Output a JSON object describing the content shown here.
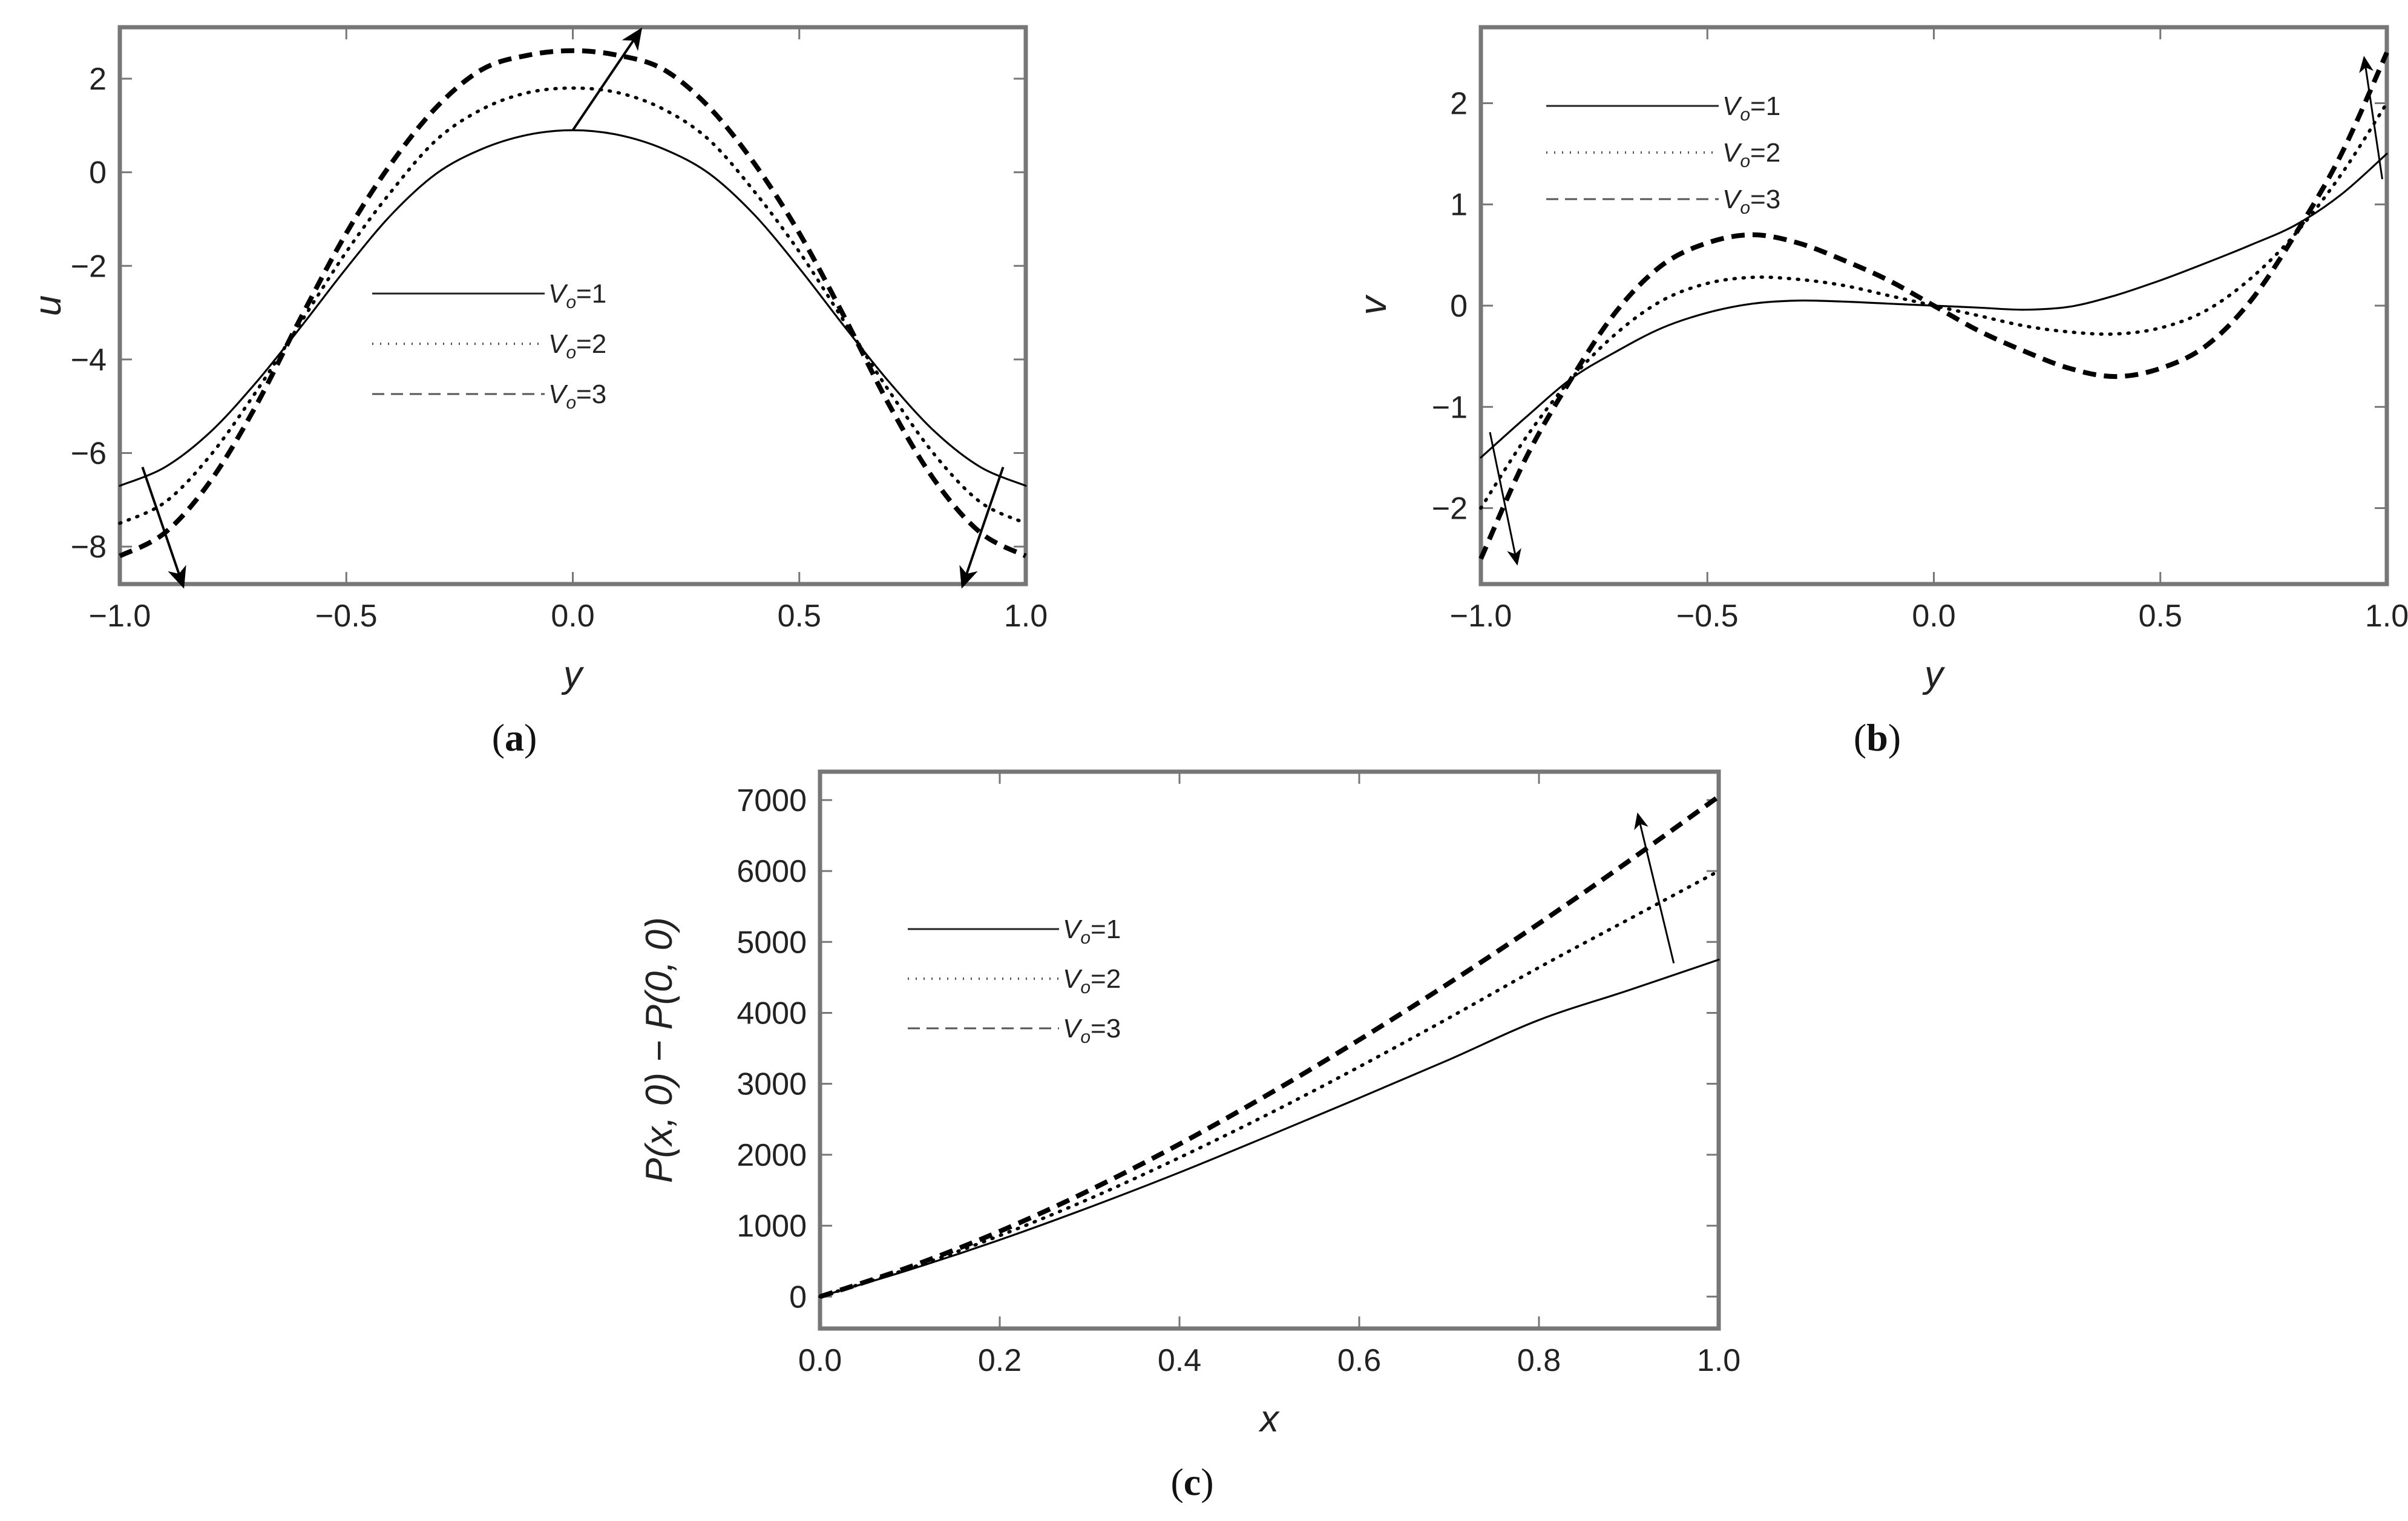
{
  "chart_data": [
    {
      "type": "line",
      "panel": "a",
      "caption_letter": "a",
      "xlabel": "y",
      "ylabel": "u",
      "xlim": [
        -1.0,
        1.0
      ],
      "ylim": [
        -8.8,
        3.1
      ],
      "xticks": [
        -1.0,
        -0.5,
        0.0,
        0.5,
        1.0
      ],
      "xtick_labels": [
        "−1.0",
        "−0.5",
        "0.0",
        "0.5",
        "1.0"
      ],
      "yticks": [
        -8,
        -6,
        -4,
        -2,
        0,
        2
      ],
      "ytick_labels": [
        "−8",
        "−6",
        "−4",
        "−2",
        "0",
        "2"
      ],
      "legend": {
        "placement": "center",
        "entries": [
          {
            "symbol": "V",
            "sub": "o",
            "value": "=1"
          },
          {
            "symbol": "V",
            "sub": "o",
            "value": "=2"
          },
          {
            "symbol": "V",
            "sub": "o",
            "value": "=3"
          }
        ]
      },
      "x": [
        -1.0,
        -0.9,
        -0.8,
        -0.7,
        -0.6,
        -0.5,
        -0.4,
        -0.3,
        -0.2,
        -0.1,
        0.0,
        0.1,
        0.2,
        0.3,
        0.4,
        0.5,
        0.6,
        0.7,
        0.8,
        0.9,
        1.0
      ],
      "series": [
        {
          "style": "solid",
          "values": [
            -6.7,
            -6.3,
            -5.55,
            -4.5,
            -3.3,
            -2.05,
            -0.9,
            -0.02,
            0.5,
            0.8,
            0.9,
            0.8,
            0.5,
            -0.02,
            -0.9,
            -2.05,
            -3.3,
            -4.5,
            -5.55,
            -6.3,
            -6.7
          ]
        },
        {
          "style": "dotted",
          "values": [
            -7.5,
            -7.05,
            -6.05,
            -4.7,
            -3.2,
            -1.7,
            -0.4,
            0.7,
            1.35,
            1.7,
            1.8,
            1.7,
            1.35,
            0.7,
            -0.4,
            -1.7,
            -3.2,
            -4.7,
            -6.05,
            -7.05,
            -7.5
          ]
        },
        {
          "style": "dashed",
          "values": [
            -8.2,
            -7.7,
            -6.6,
            -5.0,
            -3.1,
            -1.3,
            0.2,
            1.4,
            2.2,
            2.5,
            2.6,
            2.5,
            2.2,
            1.4,
            0.2,
            -1.3,
            -3.1,
            -5.0,
            -6.6,
            -7.7,
            -8.2
          ]
        }
      ]
    },
    {
      "type": "line",
      "panel": "b",
      "caption_letter": "b",
      "xlabel": "y",
      "ylabel": "v",
      "xlim": [
        -1.0,
        1.0
      ],
      "ylim": [
        -2.75,
        2.75
      ],
      "xticks": [
        -1.0,
        -0.5,
        0.0,
        0.5,
        1.0
      ],
      "xtick_labels": [
        "−1.0",
        "−0.5",
        "0.0",
        "0.5",
        "1.0"
      ],
      "yticks": [
        -2,
        -1,
        0,
        1,
        2
      ],
      "ytick_labels": [
        "−2",
        "−1",
        "0",
        "1",
        "2"
      ],
      "legend": {
        "placement": "top-left",
        "entries": [
          {
            "symbol": "V",
            "sub": "o",
            "value": "=1"
          },
          {
            "symbol": "V",
            "sub": "o",
            "value": "=2"
          },
          {
            "symbol": "V",
            "sub": "o",
            "value": "=3"
          }
        ]
      },
      "x": [
        -1.0,
        -0.9,
        -0.8,
        -0.7,
        -0.6,
        -0.5,
        -0.4,
        -0.3,
        -0.2,
        -0.1,
        0.0,
        0.1,
        0.2,
        0.3,
        0.4,
        0.5,
        0.6,
        0.7,
        0.8,
        0.9,
        1.0
      ],
      "series": [
        {
          "style": "solid",
          "values": [
            -1.5,
            -1.1,
            -0.72,
            -0.45,
            -0.22,
            -0.07,
            0.02,
            0.05,
            0.04,
            0.02,
            0.0,
            -0.02,
            -0.04,
            -0.01,
            0.1,
            0.25,
            0.42,
            0.6,
            0.8,
            1.1,
            1.5
          ]
        },
        {
          "style": "dotted",
          "values": [
            -2.0,
            -1.3,
            -0.72,
            -0.27,
            0.05,
            0.22,
            0.28,
            0.26,
            0.2,
            0.1,
            0.0,
            -0.1,
            -0.2,
            -0.26,
            -0.28,
            -0.22,
            -0.05,
            0.27,
            0.72,
            1.3,
            2.0
          ]
        },
        {
          "style": "dashed",
          "values": [
            -2.5,
            -1.5,
            -0.72,
            -0.05,
            0.4,
            0.62,
            0.7,
            0.62,
            0.45,
            0.25,
            0.0,
            -0.25,
            -0.45,
            -0.62,
            -0.7,
            -0.62,
            -0.4,
            0.05,
            0.72,
            1.5,
            2.5
          ]
        }
      ]
    },
    {
      "type": "line",
      "panel": "c",
      "caption_letter": "c",
      "xlabel": "x",
      "ylabel": "P(x, 0) − P(0, 0)",
      "xlim": [
        0.0,
        1.0
      ],
      "ylim": [
        -450,
        7400
      ],
      "xticks": [
        0.0,
        0.2,
        0.4,
        0.6,
        0.8,
        1.0
      ],
      "xtick_labels": [
        "0.0",
        "0.2",
        "0.4",
        "0.6",
        "0.8",
        "1.0"
      ],
      "yticks": [
        0,
        1000,
        2000,
        3000,
        4000,
        5000,
        6000,
        7000
      ],
      "ytick_labels": [
        "0",
        "1000",
        "2000",
        "3000",
        "4000",
        "5000",
        "6000",
        "7000"
      ],
      "legend": {
        "placement": "upper-left",
        "entries": [
          {
            "symbol": "V",
            "sub": "o",
            "value": "=1"
          },
          {
            "symbol": "V",
            "sub": "o",
            "value": "=2"
          },
          {
            "symbol": "V",
            "sub": "o",
            "value": "=3"
          }
        ]
      },
      "x": [
        0.0,
        0.1,
        0.2,
        0.3,
        0.4,
        0.5,
        0.6,
        0.7,
        0.8,
        0.9,
        1.0
      ],
      "series": [
        {
          "style": "solid",
          "values": [
            0,
            380,
            800,
            1260,
            1750,
            2270,
            2800,
            3340,
            3900,
            4320,
            4750
          ]
        },
        {
          "style": "dotted",
          "values": [
            0,
            400,
            860,
            1380,
            1960,
            2580,
            3240,
            3930,
            4640,
            5320,
            6000
          ]
        },
        {
          "style": "dashed",
          "values": [
            0,
            420,
            920,
            1500,
            2150,
            2860,
            3620,
            4420,
            5260,
            6140,
            7050
          ]
        }
      ]
    }
  ]
}
